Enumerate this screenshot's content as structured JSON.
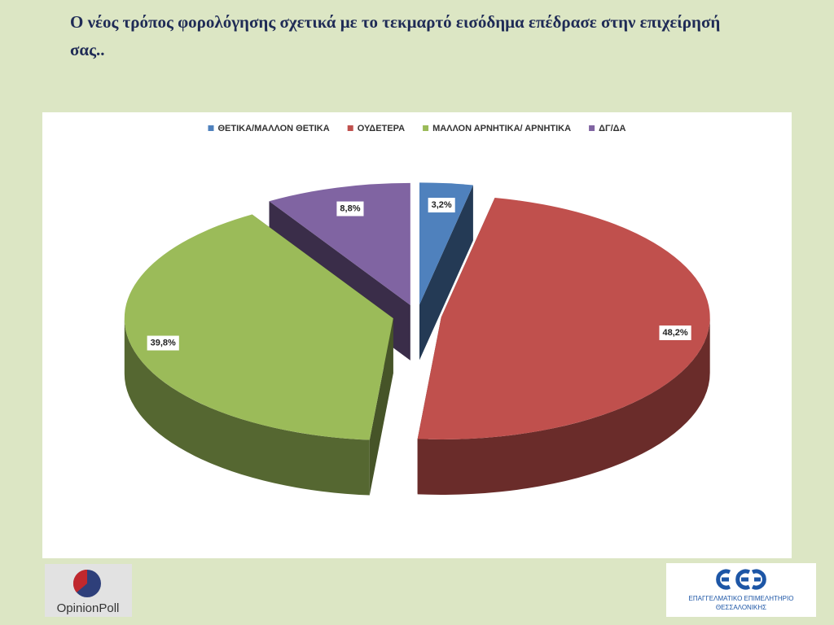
{
  "title": "Ο νέος τρόπος φορολόγησης σχετικά με το τεκμαρτό εισόδημα επέδρασε στην επιχείρησή σας..",
  "chart_data": {
    "type": "pie3d",
    "categories": [
      "ΘΕΤΙΚΑ/ΜΑΛΛΟΝ ΘΕΤΙΚΑ",
      "ΟΥΔΕΤΕΡΑ",
      "ΜΑΛΛΟΝ ΑΡΝΗΤΙΚΑ/ ΑΡΝΗΤΙΚΑ",
      "ΔΓ/ΔΑ"
    ],
    "values": [
      3.2,
      48.2,
      39.8,
      8.8
    ],
    "value_labels": [
      "3,2%",
      "48,2%",
      "39,8%",
      "8,8%"
    ],
    "colors": [
      "#4f81bd",
      "#c0504d",
      "#9bbb59",
      "#8064a2"
    ],
    "legend": "top"
  },
  "logos": {
    "left": "OpinionPoll",
    "right_line1": "ΕΠΑΓΓΕΛΜΑΤΙΚΟ ΕΠΙΜΕΛΗΤΗΡΙΟ",
    "right_line2": "ΘΕΣΣΑΛΟΝΙΚΗΣ"
  }
}
